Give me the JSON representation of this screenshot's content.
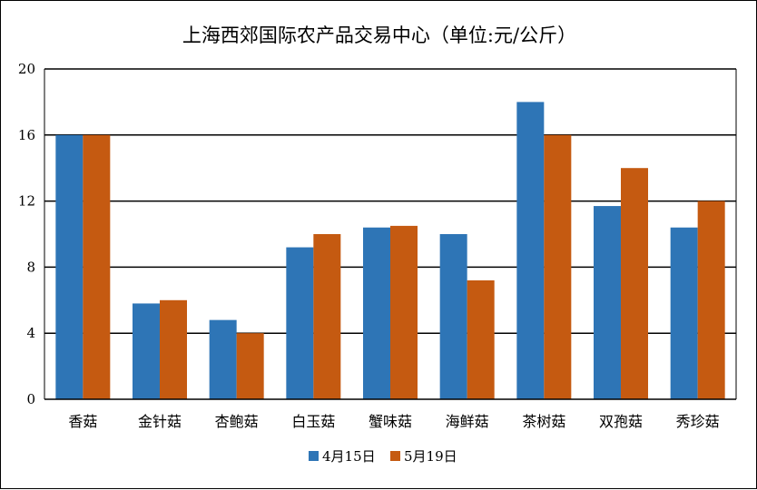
{
  "chart_data": {
    "type": "bar",
    "title": "上海西郊国际农产品交易中心（单位:元/公斤）",
    "categories": [
      "香菇",
      "金针菇",
      "杏鲍菇",
      "白玉菇",
      "蟹味菇",
      "海鲜菇",
      "茶树菇",
      "双孢菇",
      "秀珍菇"
    ],
    "series": [
      {
        "name": "4月15日",
        "color": "#2E75B6",
        "values": [
          16,
          5.8,
          4.8,
          9.2,
          10.4,
          10,
          18,
          11.7,
          10.4
        ]
      },
      {
        "name": "5月19日",
        "color": "#C55A11",
        "values": [
          16,
          6,
          4,
          10,
          10.5,
          7.2,
          16,
          14,
          12
        ]
      }
    ],
    "ylim": [
      0,
      20
    ],
    "yticks": [
      0,
      4,
      8,
      12,
      16,
      20
    ],
    "grid": true,
    "legend_position": "bottom"
  }
}
